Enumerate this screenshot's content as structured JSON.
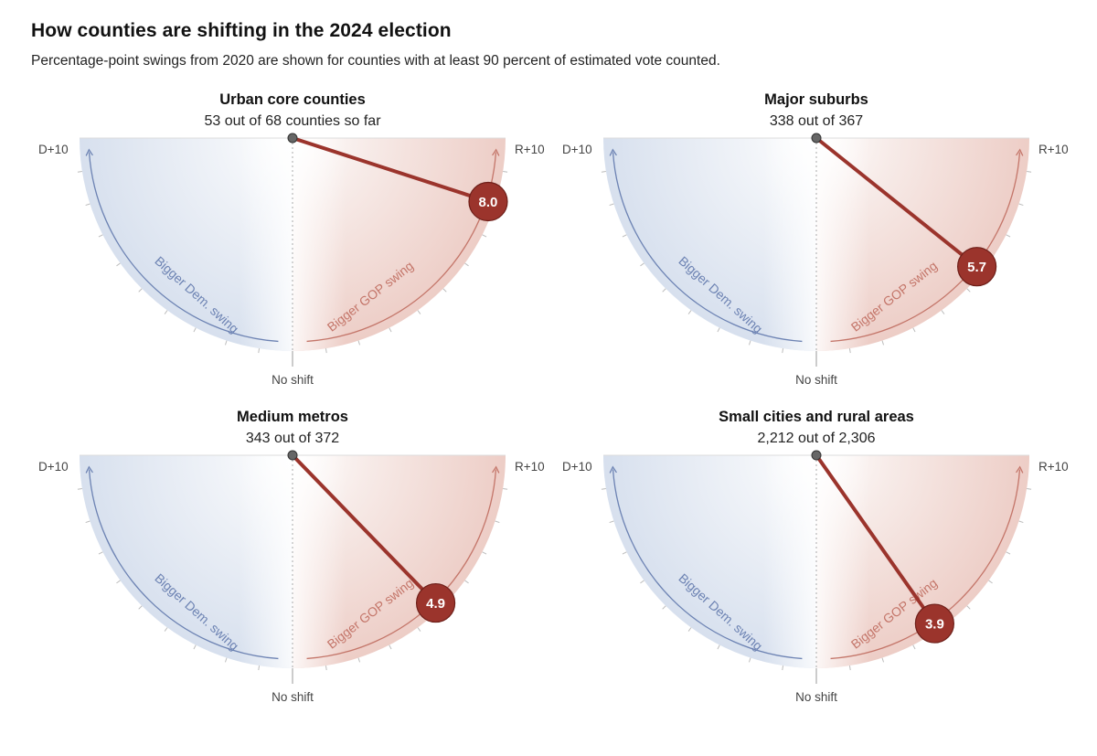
{
  "header": {
    "title": "How counties are shifting in the 2024 election",
    "subtitle": "Percentage-point swings from 2020 are shown for counties with at least 90 percent of estimated vote counted."
  },
  "colors": {
    "dem": "#6d83b3",
    "gop": "#c4766a",
    "needle": "#9b342c",
    "pivot": "#555555"
  },
  "chart_data": [
    {
      "type": "gauge",
      "title": "Urban core counties",
      "subtitle": "53 out of 68 counties so far",
      "value": 8.0,
      "value_label": "8.0",
      "range": [
        -10,
        10
      ],
      "left_label": "D+10",
      "right_label": "R+10",
      "bottom_label": "No shift",
      "dem_arc_label": "Bigger Dem. swing",
      "gop_arc_label": "Bigger GOP swing"
    },
    {
      "type": "gauge",
      "title": "Major suburbs",
      "subtitle": "338 out of 367",
      "value": 5.7,
      "value_label": "5.7",
      "range": [
        -10,
        10
      ],
      "left_label": "D+10",
      "right_label": "R+10",
      "bottom_label": "No shift",
      "dem_arc_label": "Bigger Dem. swing",
      "gop_arc_label": "Bigger GOP swing"
    },
    {
      "type": "gauge",
      "title": "Medium metros",
      "subtitle": "343 out of 372",
      "value": 4.9,
      "value_label": "4.9",
      "range": [
        -10,
        10
      ],
      "left_label": "D+10",
      "right_label": "R+10",
      "bottom_label": "No shift",
      "dem_arc_label": "Bigger Dem. swing",
      "gop_arc_label": "Bigger GOP swing"
    },
    {
      "type": "gauge",
      "title": "Small cities and rural areas",
      "subtitle": "2,212 out of 2,306",
      "value": 3.9,
      "value_label": "3.9",
      "range": [
        -10,
        10
      ],
      "left_label": "D+10",
      "right_label": "R+10",
      "bottom_label": "No shift",
      "dem_arc_label": "Bigger Dem. swing",
      "gop_arc_label": "Bigger GOP swing"
    }
  ]
}
